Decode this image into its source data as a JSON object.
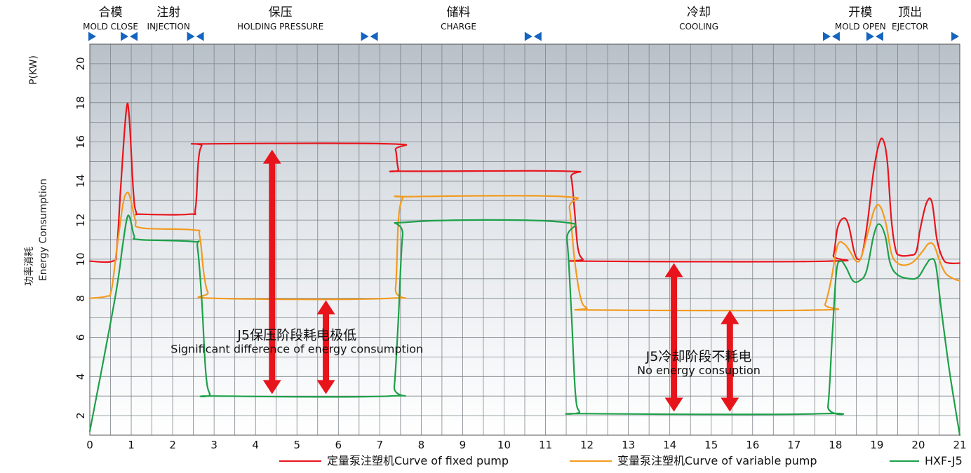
{
  "chart_data": {
    "type": "line",
    "ylabel_top": "P(KW)",
    "ylabel_cn": "功率消耗",
    "ylabel_en": "Energy Consumption",
    "xlim": [
      0,
      21
    ],
    "ylim": [
      1,
      21
    ],
    "x_ticks": [
      0,
      1,
      2,
      3,
      4,
      5,
      6,
      7,
      8,
      9,
      10,
      11,
      12,
      13,
      14,
      15,
      16,
      17,
      18,
      19,
      20,
      21
    ],
    "y_ticks": [
      2,
      4,
      6,
      8,
      10,
      12,
      14,
      16,
      18,
      20
    ],
    "grid": true,
    "legend_position": "bottom-right",
    "phases": [
      {
        "cn": "合模",
        "en": "MOLD CLOSE",
        "x": 0.5
      },
      {
        "cn": "注射",
        "en": "INJECTION",
        "x": 1.9
      },
      {
        "cn": "保压",
        "en": "HOLDING PRESSURE",
        "x": 4.6
      },
      {
        "cn": "储料",
        "en": "CHARGE",
        "x": 8.9
      },
      {
        "cn": "冷却",
        "en": "COOLING",
        "x": 14.7
      },
      {
        "cn": "开模",
        "en": "MOLD OPEN",
        "x": 18.6
      },
      {
        "cn": "顶出",
        "en": "EJECTOR",
        "x": 19.8
      }
    ],
    "phase_markers": [
      {
        "x": 0,
        "kind": "start"
      },
      {
        "x": 0.95,
        "kind": "split"
      },
      {
        "x": 2.55,
        "kind": "split"
      },
      {
        "x": 6.75,
        "kind": "split"
      },
      {
        "x": 10.7,
        "kind": "split"
      },
      {
        "x": 17.9,
        "kind": "split"
      },
      {
        "x": 18.95,
        "kind": "split"
      },
      {
        "x": 21,
        "kind": "end"
      }
    ],
    "series": [
      {
        "name": "定量泵注塑机Curve of fixed pump",
        "color": "#e8141c",
        "points": [
          [
            0,
            9.9
          ],
          [
            0.55,
            9.9
          ],
          [
            0.65,
            10.5
          ],
          [
            0.75,
            13.8
          ],
          [
            0.88,
            17.6
          ],
          [
            0.95,
            17.3
          ],
          [
            1.05,
            13.5
          ],
          [
            1.12,
            12.4
          ],
          [
            1.25,
            12.3
          ],
          [
            2.4,
            12.3
          ],
          [
            2.55,
            12.6
          ],
          [
            2.62,
            15.0
          ],
          [
            2.7,
            15.8
          ],
          [
            2.85,
            15.9
          ],
          [
            7.25,
            15.9
          ],
          [
            7.38,
            15.6
          ],
          [
            7.45,
            14.6
          ],
          [
            7.6,
            14.5
          ],
          [
            11.5,
            14.5
          ],
          [
            11.62,
            14.2
          ],
          [
            11.7,
            12.5
          ],
          [
            11.78,
            10.6
          ],
          [
            11.9,
            10.0
          ],
          [
            12.1,
            9.9
          ],
          [
            17.8,
            9.9
          ],
          [
            17.95,
            10.2
          ],
          [
            18.05,
            11.6
          ],
          [
            18.2,
            12.1
          ],
          [
            18.32,
            11.7
          ],
          [
            18.45,
            10.4
          ],
          [
            18.55,
            10.0
          ],
          [
            18.65,
            10.3
          ],
          [
            18.78,
            12.0
          ],
          [
            18.92,
            14.5
          ],
          [
            19.05,
            15.9
          ],
          [
            19.15,
            16.1
          ],
          [
            19.25,
            15.0
          ],
          [
            19.35,
            12.0
          ],
          [
            19.45,
            10.5
          ],
          [
            19.55,
            10.2
          ],
          [
            19.8,
            10.2
          ],
          [
            19.95,
            10.4
          ],
          [
            20.05,
            11.6
          ],
          [
            20.2,
            12.9
          ],
          [
            20.33,
            12.9
          ],
          [
            20.45,
            11.0
          ],
          [
            20.6,
            10.0
          ],
          [
            20.75,
            9.8
          ],
          [
            21,
            9.8
          ]
        ]
      },
      {
        "name": "变量泵注塑机Curve of variable pump",
        "color": "#f39a1e",
        "points": [
          [
            0,
            8.0
          ],
          [
            0.4,
            8.1
          ],
          [
            0.52,
            8.4
          ],
          [
            0.65,
            10.5
          ],
          [
            0.8,
            12.8
          ],
          [
            0.9,
            13.4
          ],
          [
            0.98,
            13.1
          ],
          [
            1.1,
            12.0
          ],
          [
            1.25,
            11.6
          ],
          [
            2.5,
            11.5
          ],
          [
            2.65,
            11.2
          ],
          [
            2.75,
            9.3
          ],
          [
            2.85,
            8.3
          ],
          [
            3.0,
            8.0
          ],
          [
            7.25,
            8.0
          ],
          [
            7.38,
            8.5
          ],
          [
            7.45,
            12.0
          ],
          [
            7.55,
            13.1
          ],
          [
            7.7,
            13.2
          ],
          [
            11.45,
            13.2
          ],
          [
            11.58,
            12.6
          ],
          [
            11.7,
            10.0
          ],
          [
            11.85,
            8.0
          ],
          [
            12.0,
            7.5
          ],
          [
            12.2,
            7.4
          ],
          [
            17.6,
            7.4
          ],
          [
            17.75,
            7.7
          ],
          [
            17.9,
            9.0
          ],
          [
            18.05,
            10.7
          ],
          [
            18.2,
            10.8
          ],
          [
            18.35,
            10.4
          ],
          [
            18.5,
            9.9
          ],
          [
            18.62,
            10.1
          ],
          [
            18.8,
            11.5
          ],
          [
            18.95,
            12.6
          ],
          [
            19.08,
            12.7
          ],
          [
            19.22,
            11.8
          ],
          [
            19.35,
            10.3
          ],
          [
            19.5,
            9.8
          ],
          [
            19.7,
            9.7
          ],
          [
            19.9,
            9.9
          ],
          [
            20.1,
            10.4
          ],
          [
            20.25,
            10.8
          ],
          [
            20.38,
            10.7
          ],
          [
            20.5,
            10.0
          ],
          [
            20.65,
            9.3
          ],
          [
            20.85,
            9.0
          ],
          [
            21,
            8.9
          ]
        ]
      },
      {
        "name": "HXF-J5",
        "color": "#1da049",
        "points": [
          [
            0,
            1.2
          ],
          [
            0.6,
            7.9
          ],
          [
            0.8,
            10.8
          ],
          [
            0.9,
            12.1
          ],
          [
            0.97,
            12.1
          ],
          [
            1.07,
            11.2
          ],
          [
            1.2,
            11.0
          ],
          [
            2.5,
            10.9
          ],
          [
            2.6,
            10.6
          ],
          [
            2.7,
            8.0
          ],
          [
            2.8,
            4.2
          ],
          [
            2.9,
            3.1
          ],
          [
            3.05,
            3.0
          ],
          [
            7.25,
            3.0
          ],
          [
            7.35,
            3.5
          ],
          [
            7.45,
            7.0
          ],
          [
            7.55,
            11.2
          ],
          [
            7.7,
            11.9
          ],
          [
            11.4,
            11.9
          ],
          [
            11.52,
            11.0
          ],
          [
            11.62,
            7.5
          ],
          [
            11.72,
            3.2
          ],
          [
            11.82,
            2.2
          ],
          [
            12.0,
            2.1
          ],
          [
            17.7,
            2.1
          ],
          [
            17.82,
            2.5
          ],
          [
            17.92,
            6.0
          ],
          [
            18.02,
            9.3
          ],
          [
            18.12,
            9.9
          ],
          [
            18.25,
            9.6
          ],
          [
            18.42,
            8.9
          ],
          [
            18.58,
            8.9
          ],
          [
            18.75,
            9.4
          ],
          [
            18.92,
            11.2
          ],
          [
            19.05,
            11.8
          ],
          [
            19.2,
            11.2
          ],
          [
            19.32,
            9.8
          ],
          [
            19.5,
            9.2
          ],
          [
            19.8,
            9.0
          ],
          [
            20.0,
            9.1
          ],
          [
            20.18,
            9.7
          ],
          [
            20.3,
            10.0
          ],
          [
            20.42,
            9.7
          ],
          [
            20.55,
            7.5
          ],
          [
            20.75,
            4.3
          ],
          [
            21,
            1.0
          ]
        ]
      }
    ],
    "arrows": [
      {
        "x": 4.4,
        "y_from": 15.6,
        "y_to": 3.1
      },
      {
        "x": 5.7,
        "y_from": 7.9,
        "y_to": 3.1
      },
      {
        "x": 14.1,
        "y_from": 9.8,
        "y_to": 2.2
      },
      {
        "x": 15.45,
        "y_from": 7.4,
        "y_to": 2.2
      }
    ],
    "annotations": [
      {
        "cn": "J5保压阶段耗电极低",
        "en": "Significant difference of energy consumption",
        "x": 5.0,
        "y": 5.9
      },
      {
        "cn": "J5冷却阶段不耗电",
        "en": "No energy consuption",
        "x": 14.7,
        "y": 4.8
      }
    ]
  }
}
